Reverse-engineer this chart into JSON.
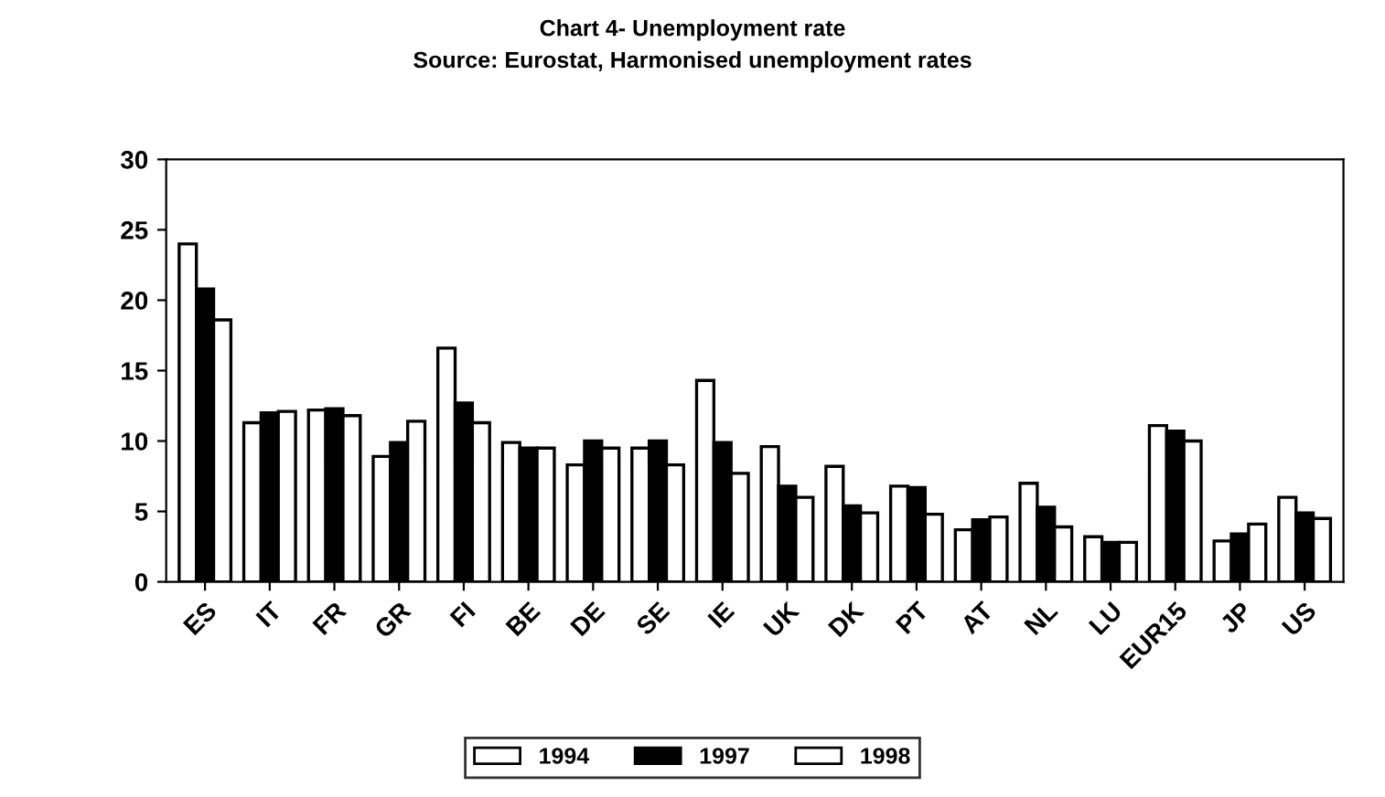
{
  "chart_data": {
    "type": "bar",
    "title": "Chart 4- Unemployment rate",
    "subtitle": "Source: Eurostat, Harmonised unemployment rates",
    "categories": [
      "ES",
      "IT",
      "FR",
      "GR",
      "FI",
      "BE",
      "DE",
      "SE",
      "IE",
      "UK",
      "DK",
      "PT",
      "AT",
      "NL",
      "LU",
      "EUR15",
      "JP",
      "US"
    ],
    "series": [
      {
        "name": "1994",
        "color": "#ffffff",
        "values": [
          24,
          11.3,
          12.2,
          8.9,
          16.6,
          9.9,
          8.3,
          9.5,
          14.3,
          9.6,
          8.2,
          6.8,
          3.7,
          7.0,
          3.2,
          11.1,
          2.9,
          6.0
        ]
      },
      {
        "name": "1997",
        "color": "#000000",
        "values": [
          20.8,
          12.0,
          12.3,
          9.9,
          12.7,
          9.5,
          10.0,
          10.0,
          9.9,
          6.8,
          5.4,
          6.7,
          4.4,
          5.3,
          2.8,
          10.7,
          3.4,
          4.9
        ]
      },
      {
        "name": "1998",
        "color": "#ffffff",
        "values": [
          18.6,
          12.1,
          11.8,
          11.4,
          11.3,
          9.5,
          9.5,
          8.3,
          7.7,
          6.0,
          4.9,
          4.8,
          4.6,
          3.9,
          2.8,
          10.0,
          4.1,
          4.5
        ]
      }
    ],
    "ylim": [
      0,
      30
    ],
    "yticks": [
      0,
      5,
      10,
      15,
      20,
      25,
      30
    ],
    "grid": false,
    "legend": "bottom"
  }
}
